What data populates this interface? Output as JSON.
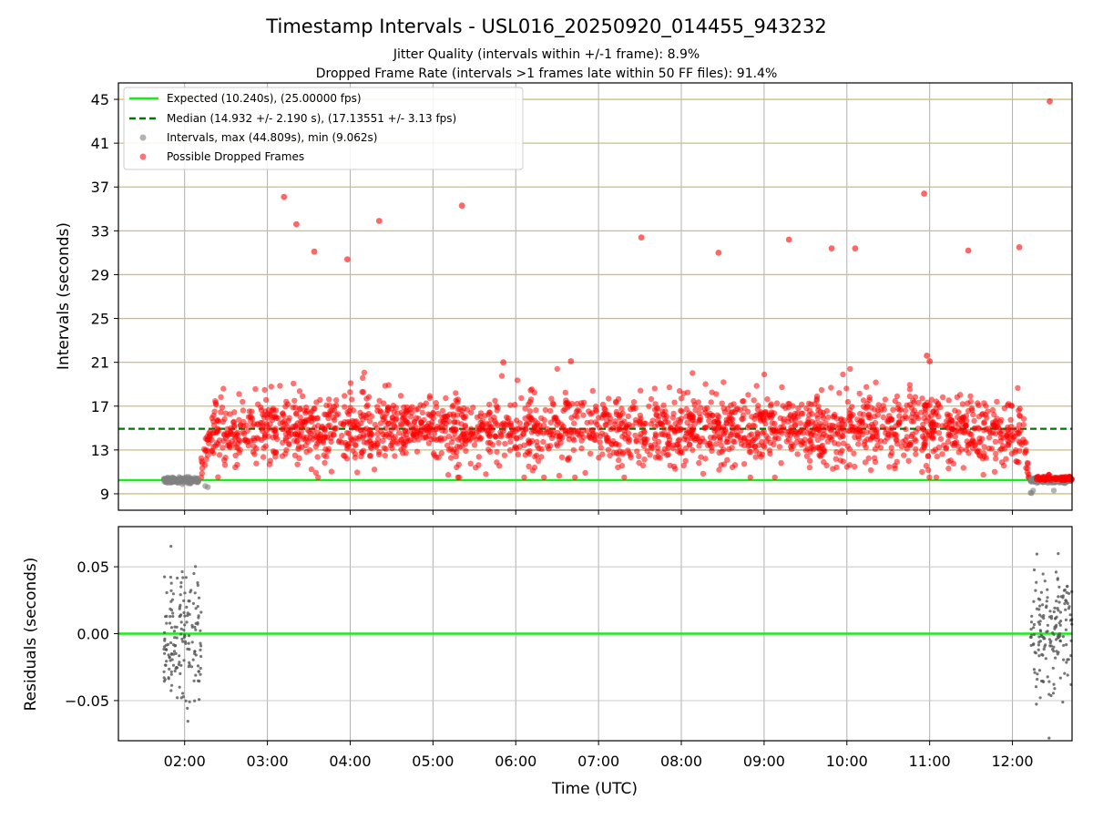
{
  "title": "Timestamp Intervals - USL016_20250920_014455_943232",
  "subtitle_1": "Jitter Quality (intervals within +/-1 frame): 8.9%",
  "subtitle_2": "Dropped Frame Rate (intervals >1 frames late within 50 FF files): 91.4%",
  "colors": {
    "expected": "#1aeb1a",
    "median": "#007700",
    "intervals": "#808080",
    "dropped": "#ff0000",
    "hgrid_top": "#cdbf7a",
    "grid": "#b0b0b0"
  },
  "chart_data": [
    {
      "type": "scatter",
      "panel": "top",
      "ylabel": "Intervals (seconds)",
      "ylim": [
        7.5,
        46.5
      ],
      "yticks": [
        "9",
        "13",
        "17",
        "21",
        "25",
        "29",
        "33",
        "37",
        "41",
        "45"
      ],
      "xlim_hours": [
        1.2,
        12.72
      ],
      "xticks": [
        "02:00",
        "03:00",
        "04:00",
        "05:00",
        "06:00",
        "07:00",
        "08:00",
        "09:00",
        "10:00",
        "11:00",
        "12:00"
      ],
      "grid": true,
      "legend_position": "upper-left",
      "legend": [
        {
          "label": "Expected (10.240s), (25.00000 fps)",
          "marker": "solid-line"
        },
        {
          "label": "Median (14.932 +/- 2.190 s), (17.13551 +/- 3.13 fps)",
          "marker": "dashed-line"
        },
        {
          "label": "Intervals, max (44.809s), min (9.062s)",
          "marker": "gray-dot"
        },
        {
          "label": "Possible Dropped Frames",
          "marker": "red-dot"
        }
      ],
      "expected_value": 10.24,
      "median_value": 14.932,
      "median_std": 2.19,
      "max_interval": 44.809,
      "min_interval": 9.062,
      "normal_segments": [
        {
          "start": "01:45",
          "end": "02:10",
          "mean": 10.24
        },
        {
          "start": "12:13",
          "end": "12:43",
          "mean": 10.24
        }
      ],
      "dropped_band": {
        "start": "02:12",
        "end": "12:12",
        "mean": 14.932,
        "std": 1.6
      },
      "outliers": [
        {
          "time": "03:12",
          "y": 36.1
        },
        {
          "time": "03:21",
          "y": 33.6
        },
        {
          "time": "03:34",
          "y": 31.1
        },
        {
          "time": "03:58",
          "y": 30.4
        },
        {
          "time": "04:21",
          "y": 33.9
        },
        {
          "time": "05:21",
          "y": 35.3
        },
        {
          "time": "05:51",
          "y": 21.0
        },
        {
          "time": "06:40",
          "y": 21.1
        },
        {
          "time": "07:31",
          "y": 32.4
        },
        {
          "time": "08:27",
          "y": 31.0
        },
        {
          "time": "09:18",
          "y": 32.2
        },
        {
          "time": "09:49",
          "y": 31.4
        },
        {
          "time": "10:06",
          "y": 31.4
        },
        {
          "time": "10:56",
          "y": 36.4
        },
        {
          "time": "10:58",
          "y": 21.6
        },
        {
          "time": "11:00",
          "y": 21.1
        },
        {
          "time": "11:28",
          "y": 31.2
        },
        {
          "time": "12:05",
          "y": 31.5
        },
        {
          "time": "12:27",
          "y": 44.809
        }
      ]
    },
    {
      "type": "scatter",
      "panel": "bottom",
      "xlabel": "Time (UTC)",
      "ylabel": "Residuals (seconds)",
      "ylim": [
        -0.08,
        0.08
      ],
      "yticks": [
        "0.05",
        "0.00",
        "−0.05"
      ],
      "grid": true,
      "reference_line": 0.0,
      "residual_segments": [
        {
          "start": "01:45",
          "end": "02:12",
          "std": 0.025
        },
        {
          "start": "12:13",
          "end": "12:43",
          "std": 0.025
        }
      ]
    }
  ]
}
